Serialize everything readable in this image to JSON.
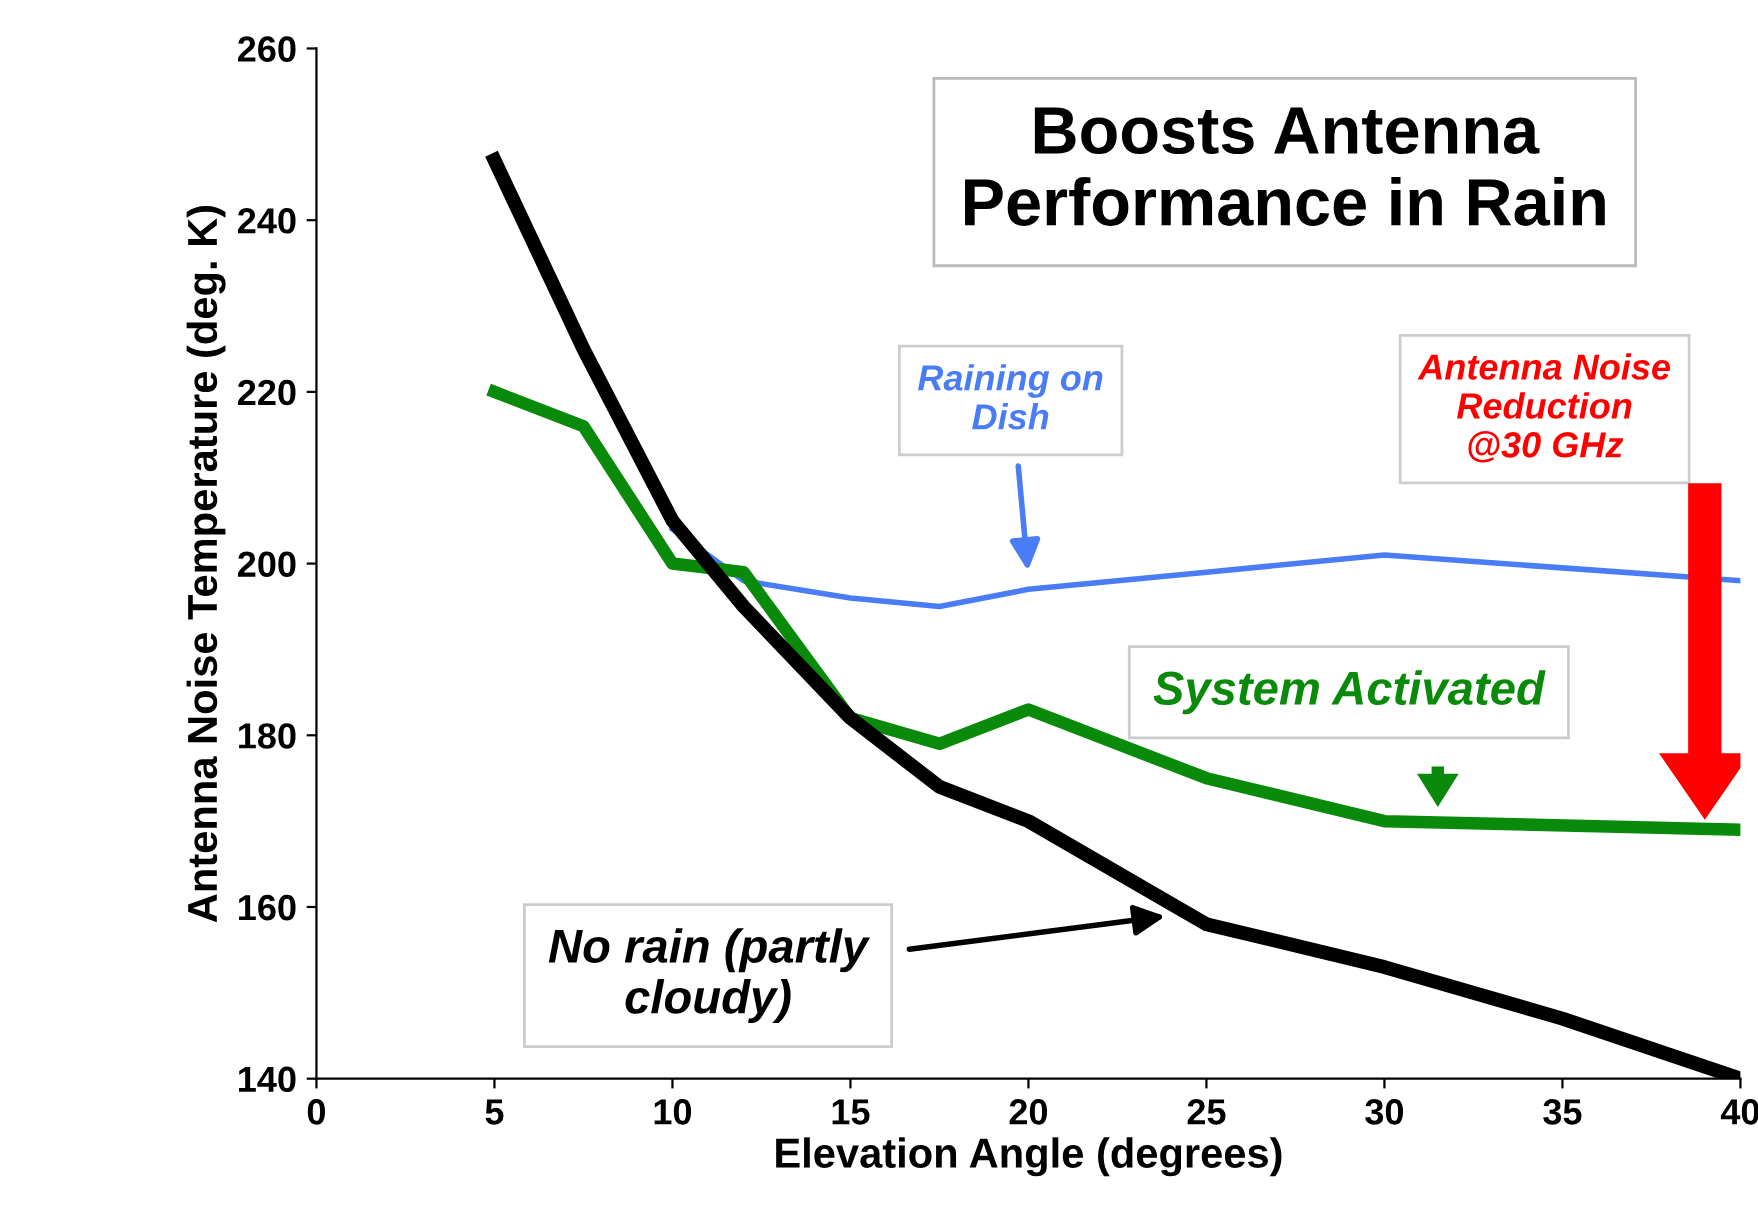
{
  "chart_data": {
    "type": "line",
    "title": "Boosts Antenna\nPerformance in Rain",
    "xlabel": "Elevation Angle (degrees)",
    "ylabel": "Antenna Noise Temperature (deg. K)",
    "xlim": [
      0,
      40
    ],
    "ylim": [
      140,
      260
    ],
    "xticks": [
      0,
      5,
      10,
      15,
      20,
      25,
      30,
      35,
      40
    ],
    "yticks": [
      140,
      160,
      180,
      200,
      220,
      240,
      260
    ],
    "grid": false,
    "marker": "none",
    "line_style": "solid",
    "series": [
      {
        "color": "#000000",
        "x": [
          5,
          7.5,
          10,
          12,
          15,
          17.5,
          20,
          25,
          30,
          35,
          40
        ],
        "values": [
          247,
          225,
          205,
          195,
          182,
          174,
          170,
          158,
          153,
          147,
          140
        ]
      },
      {
        "color": "#0a8a0a",
        "x": [
          5,
          7.5,
          10,
          12,
          15,
          17.5,
          20,
          25,
          30,
          40
        ],
        "values": [
          220,
          216,
          200,
          199,
          182,
          179,
          183,
          175,
          170,
          169
        ]
      },
      {
        "color": "#4a7cf6",
        "x": [
          10,
          12,
          15,
          17.5,
          20,
          25,
          30,
          35,
          40
        ],
        "values": [
          204,
          198,
          196,
          195,
          197,
          199,
          201,
          199.5,
          198
        ]
      }
    ],
    "annotations": [
      "Raining on\nDish",
      "Antenna Noise\nReduction\n@30 GHz",
      "System Activated",
      "No rain (partly\ncloudy)"
    ]
  }
}
